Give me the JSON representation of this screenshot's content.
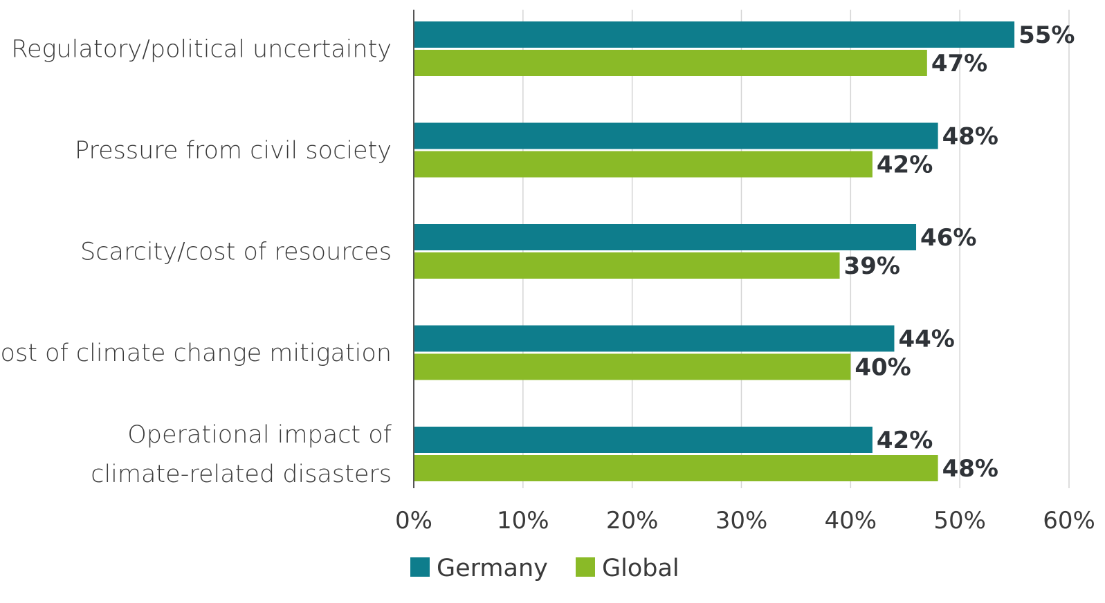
{
  "chart_data": {
    "type": "bar",
    "orientation": "horizontal",
    "categories": [
      [
        "Regulatory/political uncertainty"
      ],
      [
        "Pressure from civil society"
      ],
      [
        "Scarcity/cost of resources"
      ],
      [
        "Cost of climate change mitigation"
      ],
      [
        "Operational impact of",
        "climate-related disasters"
      ]
    ],
    "series": [
      {
        "name": "Germany",
        "color": "#0e7d8c",
        "values": [
          55,
          48,
          46,
          44,
          42
        ],
        "labels": [
          "55%",
          "48%",
          "46%",
          "44%",
          "42%"
        ]
      },
      {
        "name": "Global",
        "color": "#8aba27",
        "values": [
          47,
          42,
          39,
          40,
          48
        ],
        "labels": [
          "47%",
          "42%",
          "39%",
          "40%",
          "48%"
        ]
      }
    ],
    "xlim": [
      0,
      60
    ],
    "ticks": [
      0,
      10,
      20,
      30,
      40,
      50,
      60
    ],
    "tick_labels": [
      "0%",
      "10%",
      "20%",
      "30%",
      "40%",
      "50%",
      "60%"
    ],
    "grid": true,
    "legend_position": "bottom",
    "colors": {
      "grid": "#d4d4d4",
      "axis": "#555555"
    }
  }
}
